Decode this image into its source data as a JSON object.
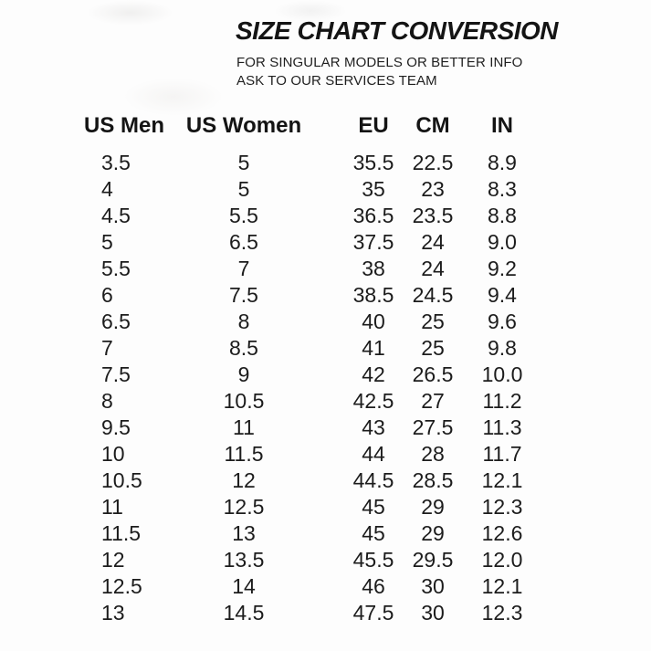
{
  "page": {
    "background_color": "#fdfdfd",
    "text_color": "#1a1a1a"
  },
  "header": {
    "title": "SIZE CHART CONVERSION",
    "subtitle_lines": [
      "FOR SINGULAR MODELS OR BETTER INFO",
      "ASK TO OUR SERVICES TEAM"
    ]
  },
  "table": {
    "columns": [
      "US Men",
      "US Women",
      "EU",
      "CM",
      "IN"
    ],
    "rows": [
      [
        "3.5",
        "5",
        "35.5",
        "22.5",
        "8.9"
      ],
      [
        "4",
        "5",
        "35",
        "23",
        "8.3"
      ],
      [
        "4.5",
        "5.5",
        "36.5",
        "23.5",
        "8.8"
      ],
      [
        "5",
        "6.5",
        "37.5",
        "24",
        "9.0"
      ],
      [
        "5.5",
        "7",
        "38",
        "24",
        "9.2"
      ],
      [
        "6",
        "7.5",
        "38.5",
        "24.5",
        "9.4"
      ],
      [
        "6.5",
        "8",
        "40",
        "25",
        "9.6"
      ],
      [
        "7",
        "8.5",
        "41",
        "25",
        "9.8"
      ],
      [
        "7.5",
        "9",
        "42",
        "26.5",
        "10.0"
      ],
      [
        "8",
        "10.5",
        "42.5",
        "27",
        "11.2"
      ],
      [
        "9.5",
        "11",
        "43",
        "27.5",
        "11.3"
      ],
      [
        "10",
        "11.5",
        "44",
        "28",
        "11.7"
      ],
      [
        "10.5",
        "12",
        "44.5",
        "28.5",
        "12.1"
      ],
      [
        "11",
        "12.5",
        "45",
        "29",
        "12.3"
      ],
      [
        "11.5",
        "13",
        "45",
        "29",
        "12.6"
      ],
      [
        "12",
        "13.5",
        "45.5",
        "29.5",
        "12.0"
      ],
      [
        "12.5",
        "14",
        "46",
        "30",
        "12.1"
      ],
      [
        "13",
        "14.5",
        "47.5",
        "30",
        "12.3"
      ]
    ]
  }
}
